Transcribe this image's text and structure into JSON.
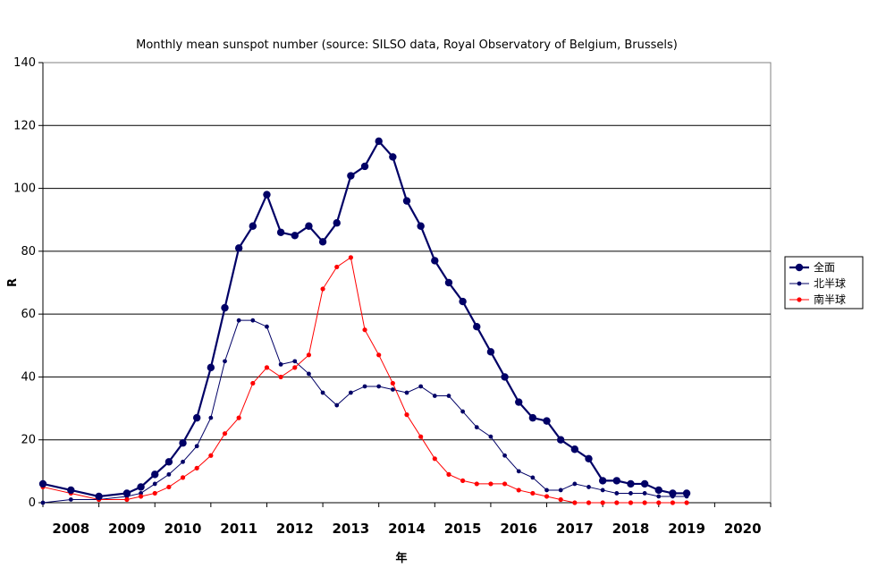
{
  "chart_data": {
    "type": "line",
    "title": "Monthly mean sunspot number (source: SILSO data, Royal Observatory of Belgium, Brussels)",
    "xlabel": "年",
    "ylabel": "R",
    "ylim": [
      0,
      140
    ],
    "yticks": [
      0,
      20,
      40,
      60,
      80,
      100,
      120,
      140
    ],
    "xlim": [
      2007.5,
      2020.5
    ],
    "xticks": [
      "2008",
      "2009",
      "2010",
      "2011",
      "2012",
      "2013",
      "2014",
      "2015",
      "2016",
      "2017",
      "2018",
      "2019",
      "2020"
    ],
    "grid": true,
    "legend_position": "right",
    "series": [
      {
        "name": "全面",
        "color": "#000066",
        "x": [
          2007.5,
          2008.0,
          2008.5,
          2009.0,
          2009.25,
          2009.5,
          2009.75,
          2010.0,
          2010.25,
          2010.5,
          2010.75,
          2011.0,
          2011.25,
          2011.5,
          2011.75,
          2012.0,
          2012.25,
          2012.5,
          2012.75,
          2013.0,
          2013.25,
          2013.5,
          2013.75,
          2014.0,
          2014.25,
          2014.5,
          2014.75,
          2015.0,
          2015.25,
          2015.5,
          2015.75,
          2016.0,
          2016.25,
          2016.5,
          2016.75,
          2017.0,
          2017.25,
          2017.5,
          2017.75,
          2018.0,
          2018.25,
          2018.5,
          2018.75,
          2019.0
        ],
        "values": [
          6,
          4,
          2,
          3,
          5,
          9,
          13,
          19,
          27,
          43,
          62,
          81,
          88,
          98,
          86,
          85,
          88,
          83,
          89,
          104,
          107,
          115,
          110,
          96,
          88,
          77,
          70,
          64,
          56,
          48,
          40,
          32,
          27,
          26,
          20,
          17,
          14,
          7,
          7,
          6,
          6,
          4,
          3,
          3
        ]
      },
      {
        "name": "北半球",
        "color": "#000066",
        "x": [
          2007.5,
          2008.0,
          2008.5,
          2009.0,
          2009.25,
          2009.5,
          2009.75,
          2010.0,
          2010.25,
          2010.5,
          2010.75,
          2011.0,
          2011.25,
          2011.5,
          2011.75,
          2012.0,
          2012.25,
          2012.5,
          2012.75,
          2013.0,
          2013.25,
          2013.5,
          2013.75,
          2014.0,
          2014.25,
          2014.5,
          2014.75,
          2015.0,
          2015.25,
          2015.5,
          2015.75,
          2016.0,
          2016.25,
          2016.5,
          2016.75,
          2017.0,
          2017.25,
          2017.5,
          2017.75,
          2018.0,
          2018.25,
          2018.5,
          2018.75,
          2019.0
        ],
        "values": [
          0,
          1,
          1,
          2,
          3,
          6,
          9,
          13,
          18,
          27,
          45,
          58,
          58,
          56,
          44,
          45,
          41,
          35,
          31,
          35,
          37,
          37,
          36,
          35,
          37,
          34,
          34,
          29,
          24,
          21,
          15,
          10,
          8,
          4,
          4,
          6,
          5,
          4,
          3,
          3,
          3,
          2,
          2,
          2
        ]
      },
      {
        "name": "南半球",
        "color": "#ff0000",
        "x": [
          2007.5,
          2008.0,
          2008.5,
          2009.0,
          2009.25,
          2009.5,
          2009.75,
          2010.0,
          2010.25,
          2010.5,
          2010.75,
          2011.0,
          2011.25,
          2011.5,
          2011.75,
          2012.0,
          2012.25,
          2012.5,
          2012.75,
          2013.0,
          2013.25,
          2013.5,
          2013.75,
          2014.0,
          2014.25,
          2014.5,
          2014.75,
          2015.0,
          2015.25,
          2015.5,
          2015.75,
          2016.0,
          2016.25,
          2016.5,
          2016.75,
          2017.0,
          2017.25,
          2017.5,
          2017.75,
          2018.0,
          2018.25,
          2018.5,
          2018.75,
          2019.0
        ],
        "values": [
          5,
          3,
          1,
          1,
          2,
          3,
          5,
          8,
          11,
          15,
          22,
          27,
          38,
          43,
          40,
          43,
          47,
          68,
          75,
          78,
          55,
          47,
          38,
          28,
          21,
          14,
          9,
          7,
          6,
          6,
          6,
          4,
          3,
          2,
          1,
          0,
          0,
          0,
          0,
          0,
          0,
          0,
          0,
          0
        ]
      }
    ]
  }
}
